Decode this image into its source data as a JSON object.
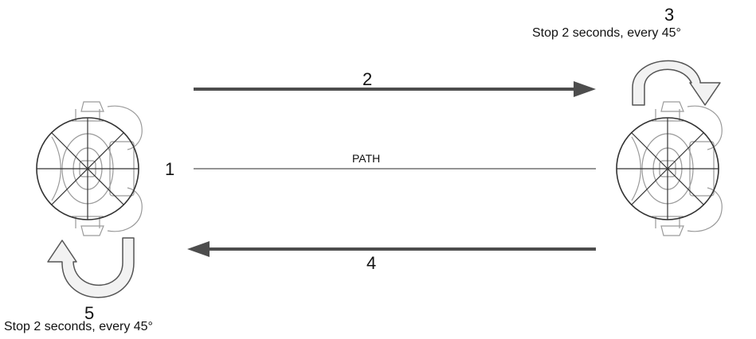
{
  "steps": {
    "step1": "1",
    "step2": "2",
    "step3": "3",
    "step4": "4",
    "step5": "5"
  },
  "path_label": "PATH",
  "right_note": "Stop 2 seconds, every 45°",
  "left_note": "Stop 2 seconds, every 45°",
  "icons": {
    "robot": "robot-top-view-icon",
    "arrow": "straight-arrow-icon",
    "rotate": "rotate-arrow-icon"
  },
  "colors": {
    "line": "#4d4d4d",
    "outline": "#555555",
    "fill": "#f2f2f2"
  }
}
